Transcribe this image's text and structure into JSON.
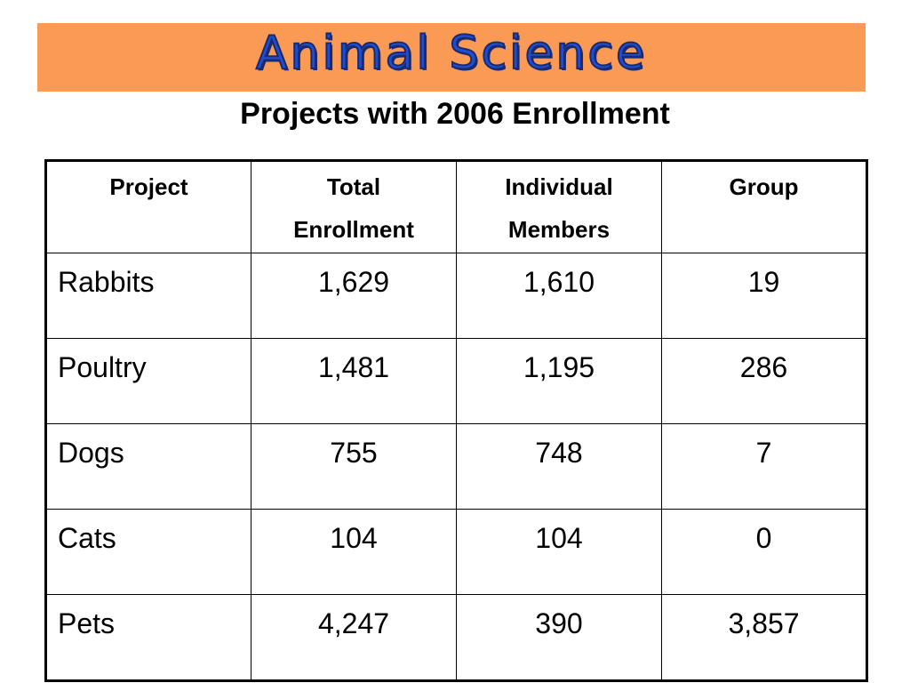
{
  "banner": {
    "title": "Animal Science",
    "background_color": "#fb9a55",
    "title_color": "#1f4fd0"
  },
  "subtitle": "Projects with 2006 Enrollment",
  "table": {
    "headers": [
      [
        "Project"
      ],
      [
        "Total",
        "Enrollment"
      ],
      [
        "Individual",
        "Members"
      ],
      [
        "Group"
      ]
    ],
    "rows": [
      [
        "Rabbits",
        "1,629",
        "1,610",
        "19"
      ],
      [
        "Poultry",
        "1,481",
        "1,195",
        "286"
      ],
      [
        "Dogs",
        "755",
        "748",
        "7"
      ],
      [
        "Cats",
        "104",
        "104",
        "0"
      ],
      [
        "Pets",
        "4,247",
        "390",
        "3,857"
      ]
    ]
  }
}
